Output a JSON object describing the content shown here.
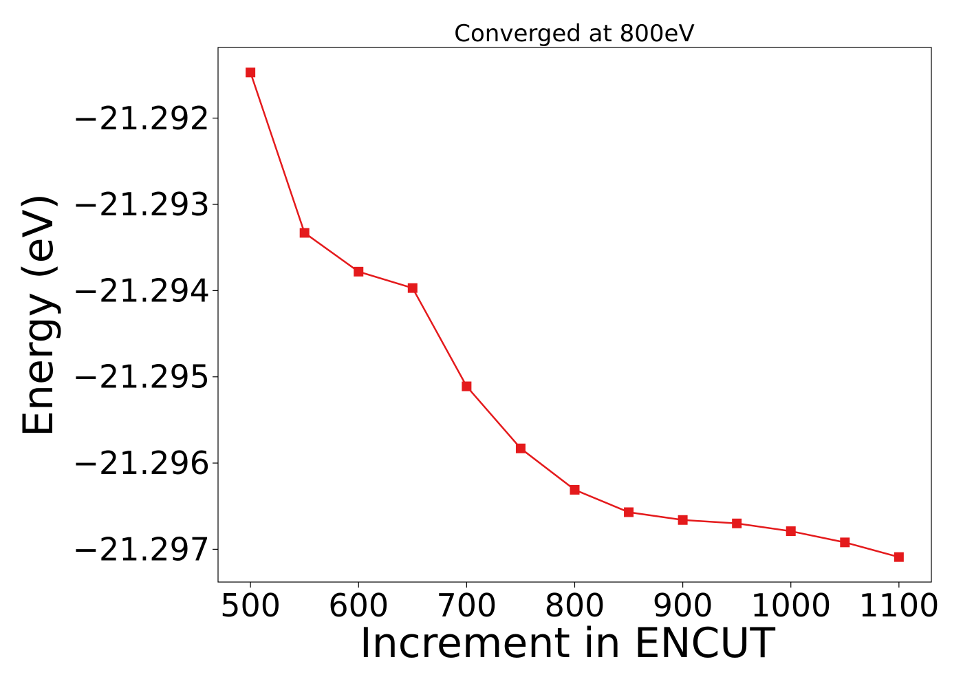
{
  "chart_data": {
    "type": "line",
    "title": "Converged at 800eV",
    "xlabel": "Increment in ENCUT",
    "ylabel": "Energy (eV)",
    "x": [
      500,
      550,
      600,
      650,
      700,
      750,
      800,
      850,
      900,
      950,
      1000,
      1050,
      1100
    ],
    "series": [
      {
        "values": [
          -21.29147,
          -21.29333,
          -21.29378,
          -21.29397,
          -21.29511,
          -21.29583,
          -21.29631,
          -21.29657,
          -21.29666,
          -21.2967,
          -21.29679,
          -21.29692,
          -21.29709
        ],
        "color": "#e41a1c",
        "marker": "square"
      }
    ],
    "xlim": [
      470,
      1130
    ],
    "ylim": [
      -21.29738,
      -21.29118
    ],
    "xticks": [
      500,
      600,
      700,
      800,
      900,
      1000,
      1100
    ],
    "xtick_labels": [
      "500",
      "600",
      "700",
      "800",
      "900",
      "1000",
      "1100"
    ],
    "yticks": [
      -21.297,
      -21.296,
      -21.295,
      -21.294,
      -21.293,
      -21.292
    ],
    "ytick_labels": [
      "−21.297",
      "−21.296",
      "−21.295",
      "−21.294",
      "−21.293",
      "−21.292"
    ],
    "grid": false,
    "legend": "none"
  }
}
